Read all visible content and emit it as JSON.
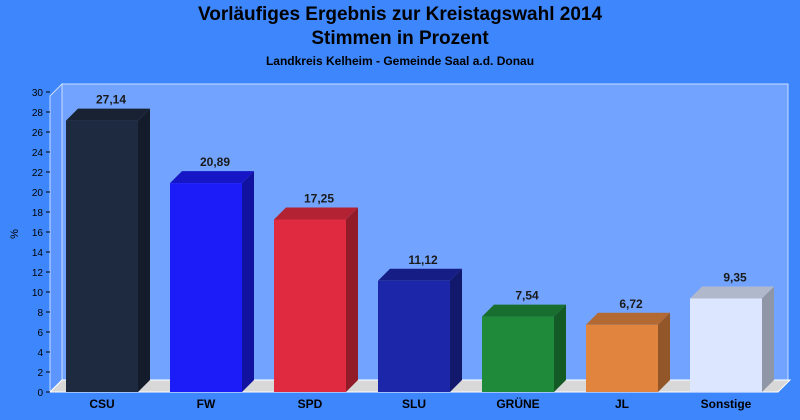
{
  "chart_data": {
    "type": "bar",
    "title": "Vorläufiges Ergebnis zur Kreistagswahl 2014",
    "subtitle": "Stimmen in Prozent",
    "subtitle2": "Landkreis Kelheim - Gemeinde Saal a.d. Donau",
    "ylabel": "%",
    "xlabel": "",
    "ylim": [
      0,
      30
    ],
    "yticks": [
      0,
      2,
      4,
      6,
      8,
      10,
      12,
      14,
      16,
      18,
      20,
      22,
      24,
      26,
      28,
      30
    ],
    "grid": false,
    "categories": [
      "CSU",
      "FW",
      "SPD",
      "SLU",
      "GRÜNE",
      "JL",
      "Sonstige"
    ],
    "value_labels": [
      "27,14",
      "20,89",
      "17,25",
      "11,12",
      "7,54",
      "6,72",
      "9,35"
    ],
    "values": [
      27.14,
      20.89,
      17.25,
      11.12,
      7.54,
      6.72,
      9.35
    ],
    "colors": [
      "#1e2a40",
      "#1c1cf8",
      "#e02a40",
      "#1c26a8",
      "#1e8a3a",
      "#e0843e",
      "#dce6ff"
    ]
  }
}
